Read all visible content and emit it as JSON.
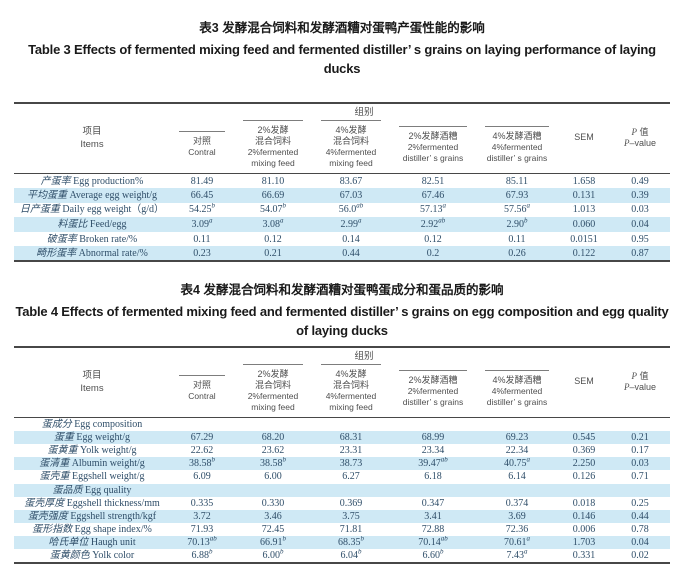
{
  "colors": {
    "stripe": "#cfe9f5",
    "rule": "#474747",
    "header_text": "#4f4f4f",
    "data_text": "#2f4e69",
    "title_text": "#1a1a1a",
    "background": "#ffffff"
  },
  "shared_header": {
    "items_zh": "项目",
    "items_en": "Items",
    "group_label": "组别",
    "columns": [
      {
        "zh": "对照",
        "en": "Contral"
      },
      {
        "zh": "2%发酵\n混合饲料",
        "en": "2%fermented\nmixing feed"
      },
      {
        "zh": "4%发酵\n混合饲料",
        "en": "4%fermented\nmixing feed"
      },
      {
        "zh": "2%发酵酒糟",
        "en": "2%fermented\ndistiller’ s grains"
      },
      {
        "zh": "4%发酵酒糟",
        "en": "4%fermented\ndistiller’ s grains"
      }
    ],
    "sem_label": "SEM",
    "p_zh": "P 值",
    "p_en": "P–value"
  },
  "tables": [
    {
      "id": "table3",
      "title_zh": "表3 发酵混合饲料和发酵酒糟对蛋鸭产蛋性能的影响",
      "title_en": "Table 3 Effects of fermented mixing feed and fermented distiller’ s grains on laying performance of laying ducks",
      "rows": [
        {
          "type": "data",
          "zh": "产蛋率",
          "en": "Egg production%",
          "cells": [
            "81.49",
            "81.10",
            "83.67",
            "82.51",
            "85.11",
            "1.658",
            "0.49"
          ]
        },
        {
          "type": "data",
          "zh": "平均蛋重",
          "en": "Average egg weight/g",
          "cells": [
            "66.45",
            "66.69",
            "67.03",
            "67.46",
            "67.93",
            "0.131",
            "0.39"
          ]
        },
        {
          "type": "data",
          "zh": "日产蛋重",
          "en": "Daily egg weight（g/d）",
          "cells": [
            "54.25^b",
            "54.07^b",
            "56.0^ab",
            "57.13^a",
            "57.56^a",
            "1.013",
            "0.03"
          ]
        },
        {
          "type": "data",
          "zh": "料蛋比",
          "en": "Feed/egg",
          "cells": [
            "3.09^a",
            "3.08^a",
            "2.99^a",
            "2.92^ab",
            "2.90^b",
            "0.060",
            "0.04"
          ]
        },
        {
          "type": "data",
          "zh": "破蛋率",
          "en": "Broken rate/%",
          "cells": [
            "0.11",
            "0.12",
            "0.14",
            "0.12",
            "0.11",
            "0.0151",
            "0.95"
          ]
        },
        {
          "type": "data",
          "zh": "畸形蛋率",
          "en": "Abnormal rate/%",
          "cells": [
            "0.23",
            "0.21",
            "0.44",
            "0.2",
            "0.26",
            "0.122",
            "0.87"
          ]
        }
      ]
    },
    {
      "id": "table4",
      "title_zh": "表4 发酵混合饲料和发酵酒糟对蛋鸭蛋成分和蛋品质的影响",
      "title_en": "Table 4 Effects of fermented mixing feed and fermented distiller’ s grains on egg composition and egg quality of laying ducks",
      "rows": [
        {
          "type": "section",
          "zh": "蛋成分",
          "en": "Egg composition",
          "cells": [
            "",
            "",
            "",
            "",
            "",
            "",
            ""
          ]
        },
        {
          "type": "data",
          "zh": "蛋重",
          "en": "Egg weight/g",
          "cells": [
            "67.29",
            "68.20",
            "68.31",
            "68.99",
            "69.23",
            "0.545",
            "0.21"
          ]
        },
        {
          "type": "data",
          "zh": "蛋黄重",
          "en": "Yolk weight/g",
          "cells": [
            "22.62",
            "23.62",
            "23.31",
            "23.34",
            "22.34",
            "0.369",
            "0.17"
          ]
        },
        {
          "type": "data",
          "zh": "蛋清重",
          "en": "Albumin weight/g",
          "cells": [
            "38.58^b",
            "38.58^b",
            "38.73",
            "39.47^ab",
            "40.75^a",
            "2.250",
            "0.03"
          ]
        },
        {
          "type": "data",
          "zh": "蛋壳重",
          "en": "Eggshell weight/g",
          "cells": [
            "6.09",
            "6.00",
            "6.27",
            "6.18",
            "6.14",
            "0.126",
            "0.71"
          ]
        },
        {
          "type": "section",
          "zh": "蛋品质",
          "en": "Egg quality",
          "cells": [
            "",
            "",
            "",
            "",
            "",
            "",
            ""
          ]
        },
        {
          "type": "data",
          "zh": "蛋壳厚度",
          "en": "Eggshell thickness/mm",
          "cells": [
            "0.335",
            "0.330",
            "0.369",
            "0.347",
            "0.374",
            "0.018",
            "0.25"
          ]
        },
        {
          "type": "data",
          "zh": "蛋壳强度",
          "en": "Eggshell strength/kgf",
          "cells": [
            "3.72",
            "3.46",
            "3.75",
            "3.41",
            "3.69",
            "0.146",
            "0.44"
          ]
        },
        {
          "type": "data",
          "zh": "蛋形指数",
          "en": "Egg shape index/%",
          "cells": [
            "71.93",
            "72.45",
            "71.81",
            "72.88",
            "72.36",
            "0.006",
            "0.78"
          ]
        },
        {
          "type": "data",
          "zh": "哈氏单位",
          "en": "Haugh unit",
          "cells": [
            "70.13^ab",
            "66.91^b",
            "68.35^b",
            "70.14^ab",
            "70.61^a",
            "1.703",
            "0.04"
          ]
        },
        {
          "type": "data",
          "zh": "蛋黄颜色",
          "en": "Yolk color",
          "cells": [
            "6.88^b",
            "6.00^b",
            "6.04^b",
            "6.60^b",
            "7.43^a",
            "0.331",
            "0.02"
          ]
        }
      ]
    }
  ]
}
